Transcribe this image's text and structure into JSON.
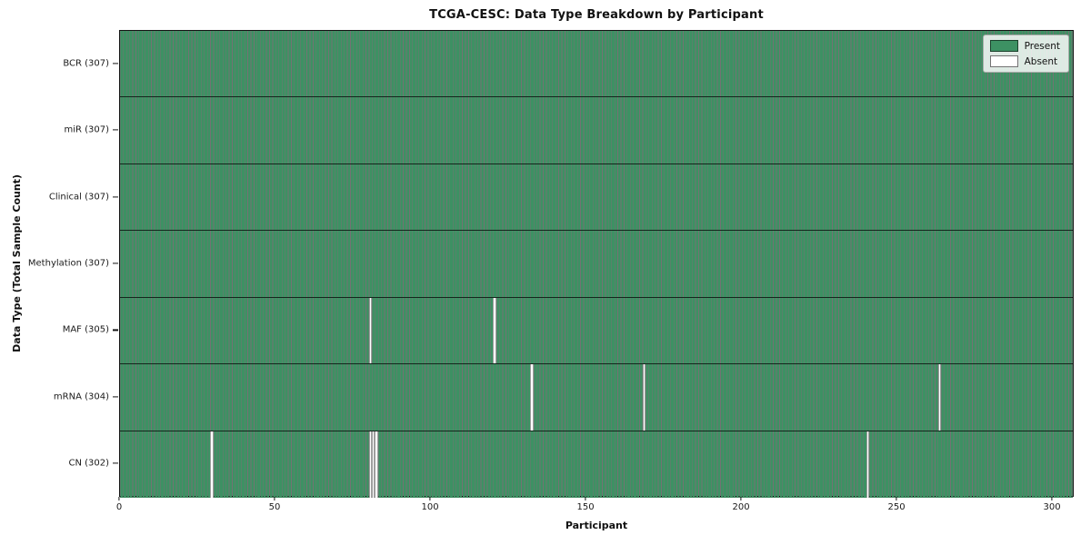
{
  "title": "TCGA-CESC: Data Type Breakdown by Participant",
  "x_axis": {
    "label": "Participant",
    "ticks": [
      0,
      50,
      100,
      150,
      200,
      250,
      300
    ]
  },
  "y_axis": {
    "label": "Data Type (Total Sample Count)"
  },
  "legend": {
    "items": [
      {
        "label": "Present",
        "color": "#3d9163"
      },
      {
        "label": "Absent",
        "color": "#ffffff"
      }
    ]
  },
  "chart_data": {
    "type": "heatmap",
    "title": "TCGA-CESC: Data Type Breakdown by Participant",
    "xlabel": "Participant",
    "ylabel": "Data Type (Total Sample Count)",
    "xlim": [
      0,
      307
    ],
    "x_ticks": [
      0,
      50,
      100,
      150,
      200,
      250,
      300
    ],
    "n_participants": 307,
    "grid": false,
    "legend_position": "upper-right",
    "present_color": "#3d9163",
    "absent_color": "#ffffff",
    "cell_edge_color": "rgba(0,0,0,0.55)",
    "rows": [
      {
        "label": "BCR (307)",
        "datatype": "BCR",
        "total": 307,
        "absent_participants": []
      },
      {
        "label": "miR (307)",
        "datatype": "miR",
        "total": 307,
        "absent_participants": []
      },
      {
        "label": "Clinical (307)",
        "datatype": "Clinical",
        "total": 307,
        "absent_participants": []
      },
      {
        "label": "Methylation (307)",
        "datatype": "Methylation",
        "total": 307,
        "absent_participants": []
      },
      {
        "label": "MAF (305)",
        "datatype": "MAF",
        "total": 305,
        "absent_participants": [
          80,
          120
        ]
      },
      {
        "label": "mRNA (304)",
        "datatype": "mRNA",
        "total": 304,
        "absent_participants": [
          132,
          168,
          263
        ]
      },
      {
        "label": "CN (302)",
        "datatype": "CN",
        "total": 302,
        "absent_participants": [
          29,
          80,
          81,
          82,
          240
        ]
      }
    ]
  }
}
